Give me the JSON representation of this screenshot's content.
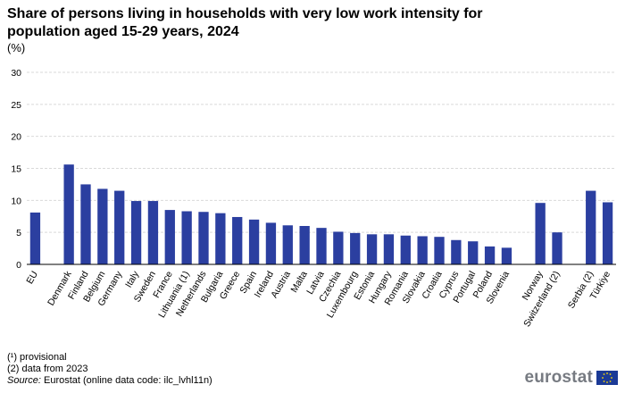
{
  "title": "Share of persons living in households with very low work intensity for population aged 15-29 years, 2024",
  "unit": "(%)",
  "notes": {
    "provisional": "(¹) provisional",
    "data_2023": "(2) data from 2023",
    "source_label": "Source:",
    "source_text": "Eurostat (online data code: ilc_lvhl11n)"
  },
  "logo": {
    "text": "eurostat"
  },
  "colors": {
    "bar": "#2b3fa0",
    "grid": "#d9d9d9"
  },
  "chart_data": {
    "type": "bar",
    "title": "Share of persons living in households with very low work intensity for population aged 15-29 years, 2024",
    "ylabel": "(%)",
    "ylim": [
      0,
      30
    ],
    "yticks": [
      0,
      5,
      10,
      15,
      20,
      25,
      30
    ],
    "grid": true,
    "groups": [
      {
        "categories": [
          "EU"
        ],
        "values": [
          8.1
        ]
      },
      {
        "categories": [
          "Denmark",
          "Finland",
          "Belgium",
          "Germany",
          "Italy",
          "Sweden",
          "France",
          "Lithuania (1)",
          "Netherlands",
          "Bulgaria",
          "Greece",
          "Spain",
          "Ireland",
          "Austria",
          "Malta",
          "Latvia",
          "Czechia",
          "Luxembourg",
          "Estonia",
          "Hungary",
          "Romania",
          "Slovakia",
          "Croatia",
          "Cyprus",
          "Portugal",
          "Poland",
          "Slovenia"
        ],
        "values": [
          15.6,
          12.5,
          11.8,
          11.5,
          9.9,
          9.9,
          8.5,
          8.3,
          8.2,
          8.0,
          7.4,
          7.0,
          6.5,
          6.1,
          6.0,
          5.7,
          5.1,
          4.9,
          4.7,
          4.7,
          4.5,
          4.4,
          4.3,
          3.8,
          3.6,
          2.8,
          2.6
        ]
      },
      {
        "categories": [
          "Norway",
          "Switzerland (2)"
        ],
        "values": [
          9.6,
          5.0
        ]
      },
      {
        "categories": [
          "Serbia (2)",
          "Türkiye"
        ],
        "values": [
          11.5,
          9.7
        ]
      }
    ]
  }
}
